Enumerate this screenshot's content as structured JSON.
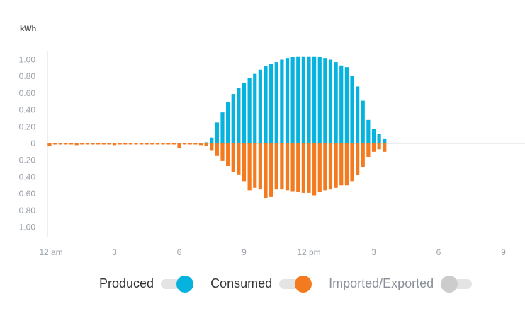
{
  "chart_data": {
    "type": "bar",
    "ylabel": "kWh",
    "interval_minutes": 15,
    "x_tick_labels": [
      "12 am",
      "3",
      "6",
      "9",
      "12 pm",
      "3",
      "6",
      "9"
    ],
    "x_tick_hours": [
      0,
      3,
      6,
      9,
      12,
      15,
      18,
      21
    ],
    "y_tick_labels_top": [
      "1.00",
      "0.80",
      "0.60",
      "0.40",
      "0.20",
      "0"
    ],
    "y_tick_labels_bottom": [
      "0.20",
      "0.40",
      "0.60",
      "0.80",
      "1.00"
    ],
    "ylim": [
      -1.1,
      1.1
    ],
    "series": [
      {
        "name": "Produced",
        "color": "#06b3de",
        "direction": "up",
        "start_index": 29,
        "values": [
          0.01,
          0.07,
          0.25,
          0.37,
          0.49,
          0.59,
          0.66,
          0.72,
          0.78,
          0.83,
          0.88,
          0.92,
          0.95,
          0.97,
          1.0,
          1.02,
          1.03,
          1.04,
          1.04,
          1.04,
          1.04,
          1.03,
          1.02,
          1.0,
          0.97,
          0.93,
          0.91,
          0.81,
          0.68,
          0.51,
          0.28,
          0.17,
          0.11,
          0.06
        ]
      },
      {
        "name": "Consumed",
        "color": "#f47a20",
        "direction": "down",
        "start_index": 0,
        "values": [
          0.03,
          0.01,
          0.01,
          0.01,
          0.01,
          0.02,
          0.01,
          0.01,
          0.01,
          0.01,
          0.01,
          0.01,
          0.02,
          0.01,
          0.01,
          0.01,
          0.01,
          0.01,
          0.01,
          0.01,
          0.01,
          0.01,
          0.01,
          0.01,
          0.06,
          0.01,
          0.01,
          0.01,
          0.02,
          0.03,
          0.08,
          0.15,
          0.21,
          0.27,
          0.34,
          0.37,
          0.45,
          0.56,
          0.53,
          0.55,
          0.65,
          0.64,
          0.55,
          0.55,
          0.56,
          0.57,
          0.58,
          0.59,
          0.59,
          0.62,
          0.58,
          0.56,
          0.55,
          0.53,
          0.5,
          0.5,
          0.45,
          0.38,
          0.28,
          0.16,
          0.1,
          0.07,
          0.1
        ]
      }
    ]
  },
  "legend": [
    {
      "label": "Produced",
      "state": "on",
      "color": "#06b3de"
    },
    {
      "label": "Consumed",
      "state": "on",
      "color": "#f47a20"
    },
    {
      "label": "Imported/Exported",
      "state": "off",
      "color": "#cccccc"
    }
  ]
}
